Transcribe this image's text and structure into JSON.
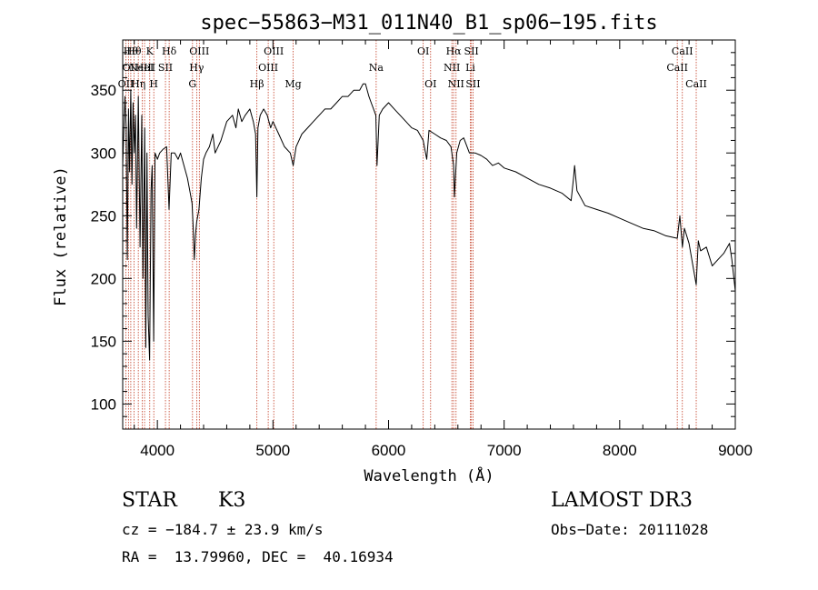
{
  "chart_data": {
    "type": "line",
    "title": "spec−55863−M31_011N40_B1_sp06−195.fits",
    "xlabel": "Wavelength (Å)",
    "ylabel": "Flux (relative)",
    "xlim": [
      3700,
      9000
    ],
    "ylim": [
      80,
      390
    ],
    "xticks": [
      {
        "value": 4000,
        "label": "4000"
      },
      {
        "value": 5000,
        "label": "5000"
      },
      {
        "value": 6000,
        "label": "6000"
      },
      {
        "value": 7000,
        "label": "7000"
      },
      {
        "value": 8000,
        "label": "8000"
      },
      {
        "value": 9000,
        "label": "9000"
      }
    ],
    "yticks": [
      {
        "value": 100,
        "label": "100"
      },
      {
        "value": 150,
        "label": "150"
      },
      {
        "value": 200,
        "label": "200"
      },
      {
        "value": 250,
        "label": "250"
      },
      {
        "value": 300,
        "label": "300"
      },
      {
        "value": 350,
        "label": "350"
      }
    ],
    "series": [
      {
        "name": "flux",
        "x": [
          3700,
          3720,
          3730,
          3740,
          3750,
          3760,
          3770,
          3780,
          3790,
          3800,
          3810,
          3820,
          3835,
          3850,
          3865,
          3875,
          3890,
          3900,
          3910,
          3920,
          3933,
          3945,
          3955,
          3968,
          3980,
          4000,
          4020,
          4050,
          4080,
          4101,
          4120,
          4150,
          4180,
          4200,
          4230,
          4260,
          4280,
          4300,
          4310,
          4320,
          4330,
          4340,
          4360,
          4380,
          4400,
          4420,
          4450,
          4480,
          4500,
          4550,
          4600,
          4650,
          4680,
          4700,
          4730,
          4760,
          4800,
          4830,
          4850,
          4861,
          4870,
          4890,
          4920,
          4950,
          4980,
          5000,
          5050,
          5100,
          5150,
          5175,
          5200,
          5250,
          5300,
          5350,
          5400,
          5450,
          5500,
          5550,
          5600,
          5650,
          5700,
          5750,
          5780,
          5800,
          5830,
          5850,
          5870,
          5890,
          5900,
          5920,
          5950,
          6000,
          6050,
          6100,
          6150,
          6200,
          6250,
          6300,
          6330,
          6350,
          6400,
          6450,
          6500,
          6540,
          6563,
          6570,
          6590,
          6620,
          6650,
          6700,
          6750,
          6800,
          6850,
          6900,
          6950,
          7000,
          7100,
          7200,
          7300,
          7400,
          7500,
          7580,
          7600,
          7610,
          7630,
          7700,
          7800,
          7900,
          8000,
          8100,
          8200,
          8300,
          8400,
          8498,
          8520,
          8542,
          8560,
          8600,
          8662,
          8680,
          8700,
          8750,
          8800,
          8850,
          8900,
          8950,
          8970,
          9000
        ],
        "y": [
          290,
          345,
          320,
          215,
          335,
          285,
          350,
          275,
          340,
          300,
          330,
          240,
          345,
          225,
          330,
          200,
          320,
          145,
          300,
          170,
          135,
          270,
          290,
          150,
          300,
          295,
          300,
          303,
          305,
          255,
          300,
          300,
          295,
          300,
          290,
          280,
          270,
          260,
          240,
          215,
          235,
          245,
          255,
          280,
          295,
          300,
          305,
          315,
          300,
          310,
          325,
          330,
          320,
          335,
          325,
          330,
          335,
          325,
          315,
          265,
          320,
          330,
          335,
          330,
          320,
          325,
          315,
          305,
          300,
          290,
          305,
          315,
          320,
          325,
          330,
          335,
          335,
          340,
          345,
          345,
          350,
          350,
          355,
          355,
          345,
          340,
          335,
          330,
          290,
          330,
          335,
          340,
          335,
          330,
          325,
          320,
          318,
          310,
          295,
          318,
          315,
          312,
          310,
          305,
          290,
          265,
          300,
          310,
          312,
          300,
          300,
          298,
          295,
          290,
          292,
          288,
          285,
          280,
          275,
          272,
          268,
          262,
          280,
          290,
          270,
          258,
          255,
          252,
          248,
          244,
          240,
          238,
          234,
          232,
          250,
          225,
          240,
          228,
          195,
          230,
          222,
          225,
          210,
          215,
          220,
          228,
          215,
          190
        ]
      }
    ],
    "lines": [
      {
        "x": 3727,
        "label": "OII",
        "row": 2
      },
      {
        "x": 3750,
        "label": "OI",
        "row": 1
      },
      {
        "x": 3770,
        "label": "Hθ",
        "row": 0
      },
      {
        "x": 3798,
        "label": "Hθ",
        "row": 0
      },
      {
        "x": 3835,
        "label": "Hη",
        "row": 2
      },
      {
        "x": 3869,
        "label": "NeIII",
        "row": 1
      },
      {
        "x": 3889,
        "label": "HeI",
        "row": 1
      },
      {
        "x": 3934,
        "label": "K",
        "row": 0
      },
      {
        "x": 3969,
        "label": "H",
        "row": 2
      },
      {
        "x": 4070,
        "label": "SII",
        "row": 1
      },
      {
        "x": 4102,
        "label": "Hδ",
        "row": 0
      },
      {
        "x": 4304,
        "label": "G",
        "row": 2
      },
      {
        "x": 4340,
        "label": "Hγ",
        "row": 1
      },
      {
        "x": 4363,
        "label": "OIII",
        "row": 0
      },
      {
        "x": 4861,
        "label": "Hβ",
        "row": 2
      },
      {
        "x": 4959,
        "label": "OIII",
        "row": 1
      },
      {
        "x": 5007,
        "label": "OIII",
        "row": 0
      },
      {
        "x": 5175,
        "label": "Mg",
        "row": 2
      },
      {
        "x": 5893,
        "label": "Na",
        "row": 1
      },
      {
        "x": 6300,
        "label": "OI",
        "row": 0
      },
      {
        "x": 6364,
        "label": "OI",
        "row": 2
      },
      {
        "x": 6548,
        "label": "NII",
        "row": 1
      },
      {
        "x": 6563,
        "label": "Hα",
        "row": 0
      },
      {
        "x": 6584,
        "label": "NII",
        "row": 2
      },
      {
        "x": 6708,
        "label": "Li",
        "row": 1
      },
      {
        "x": 6717,
        "label": "SII",
        "row": 0
      },
      {
        "x": 6731,
        "label": "SII",
        "row": 2
      },
      {
        "x": 8498,
        "label": "CaII",
        "row": 1
      },
      {
        "x": 8542,
        "label": "CaII",
        "row": 0
      },
      {
        "x": 8662,
        "label": "CaII",
        "row": 2
      }
    ]
  },
  "info": {
    "class": "STAR",
    "subclass": "K3",
    "survey": "LAMOST DR3",
    "cz": "cz = −184.7 ± 23.9 km/s",
    "obs_date": "Obs−Date: 20111028",
    "radec": "RA =  13.79960, DEC =  40.16934"
  }
}
